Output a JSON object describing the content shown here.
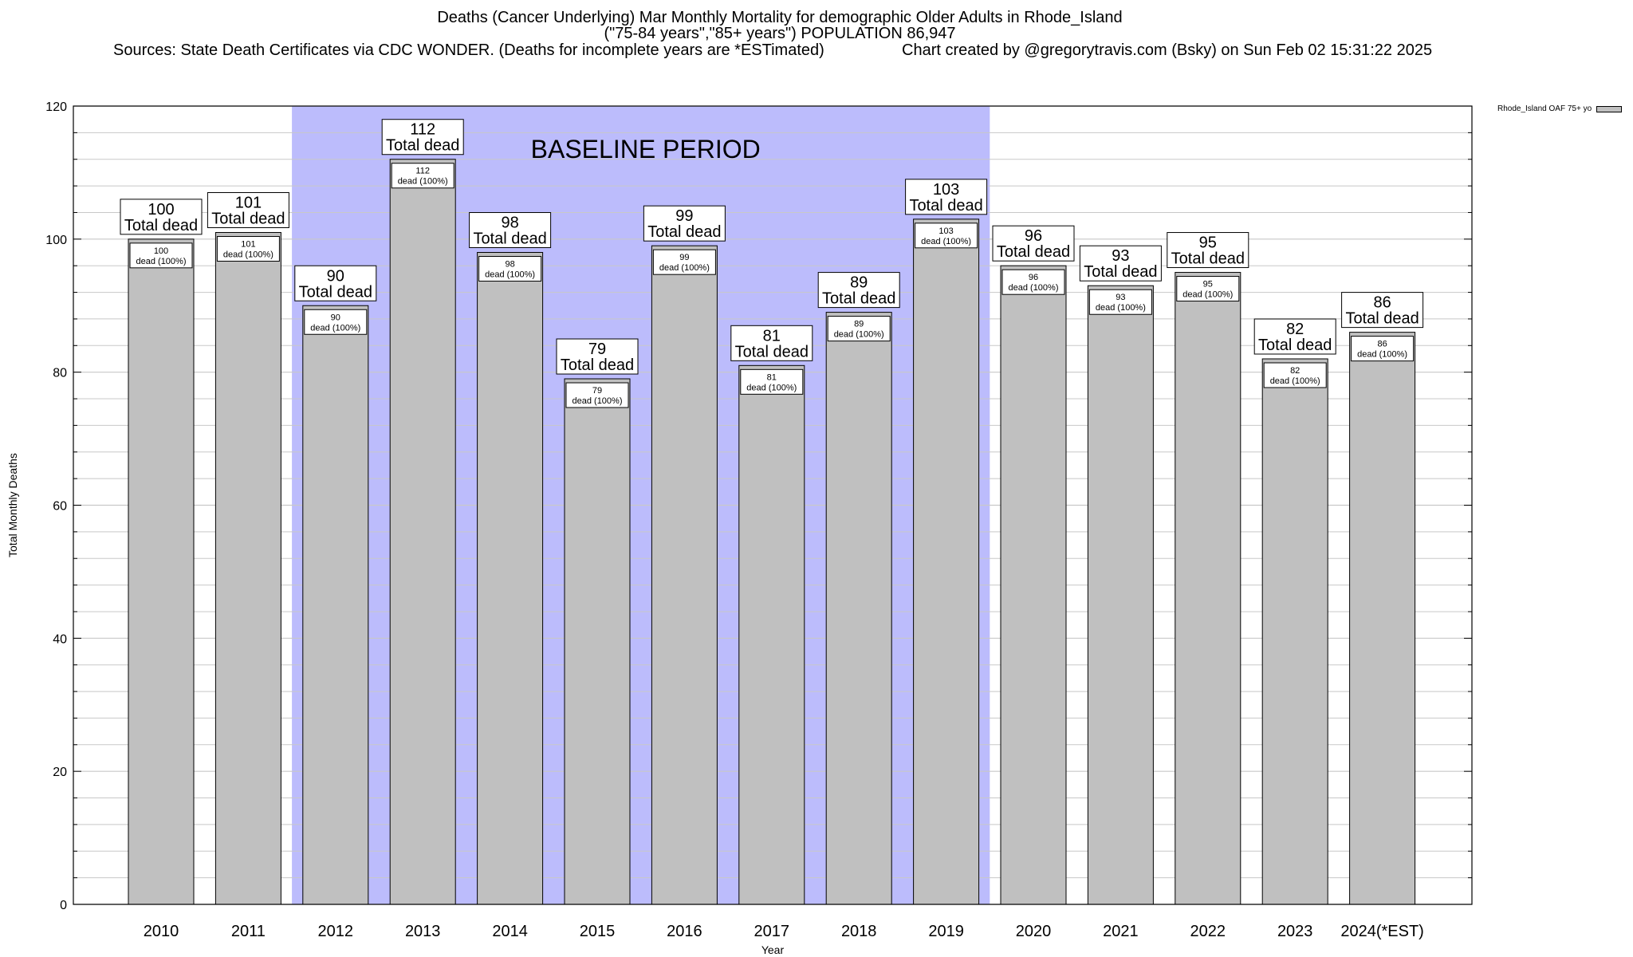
{
  "chart_data": {
    "type": "bar",
    "title_lines": [
      "Deaths (Cancer Underlying) Mar Monthly Mortality for demographic Older Adults in Rhode_Island",
      "(\"75-84 years\",\"85+ years\") POPULATION 86,947"
    ],
    "source_text": "Sources: State Death Certificates via CDC WONDER. (Deaths for incomplete years are *ESTimated)",
    "credit_text": "Chart created by @gregorytravis.com (Bsky) on Sun Feb 02 15:31:22 2025",
    "xlabel": "Year",
    "ylabel": "Total Monthly Deaths",
    "ylim": [
      0,
      120
    ],
    "yticks": [
      0,
      20,
      40,
      60,
      80,
      100,
      120
    ],
    "minor_grid_step": 4,
    "grid": true,
    "categories": [
      "2010",
      "2011",
      "2012",
      "2013",
      "2014",
      "2015",
      "2016",
      "2017",
      "2018",
      "2019",
      "2020",
      "2021",
      "2022",
      "2023",
      "2024(*EST)"
    ],
    "series": [
      {
        "name": "Rhode_Island OAF 75+ yo",
        "values": [
          100,
          101,
          90,
          112,
          98,
          79,
          99,
          81,
          89,
          103,
          96,
          93,
          95,
          82,
          86
        ]
      }
    ],
    "total_label_suffix": "Total dead",
    "inner_label_suffix": "dead (100%)",
    "baseline": {
      "label": "BASELINE PERIOD",
      "start": "2012",
      "end": "2019"
    },
    "legend_position": "top-right",
    "colors": {
      "bar": "#c0c0c0",
      "baseline": "#bcbcfc",
      "grid": "#c8c8c8",
      "frame": "#000000"
    }
  }
}
